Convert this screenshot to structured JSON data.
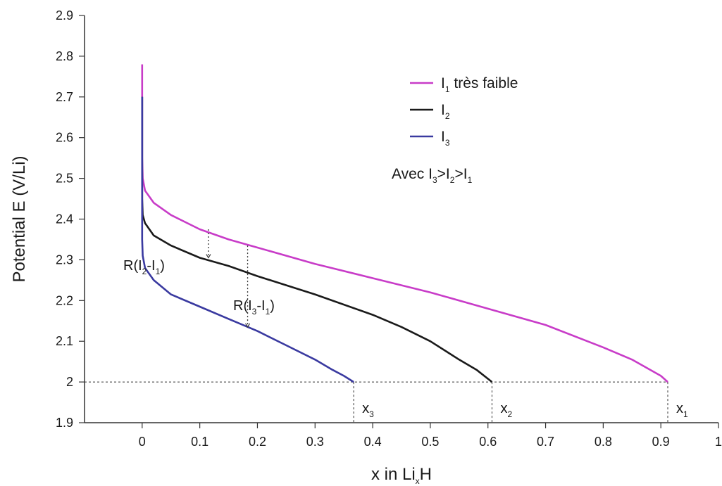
{
  "chart_data": {
    "type": "line",
    "ylabel": "Potential E (V/Li)",
    "xlabel": {
      "main": "x in Li",
      "sub": "x",
      "tail": "H"
    },
    "xlim": [
      -0.1,
      1.0
    ],
    "ylim": [
      1.9,
      2.9
    ],
    "x_ticks": [
      0,
      0.1,
      0.2,
      0.3,
      0.4,
      0.5,
      0.6,
      0.7,
      0.8,
      0.9,
      1
    ],
    "x_tick_labels": [
      "0",
      "0.1",
      "0.2",
      "0.3",
      "0.4",
      "0.5",
      "0.6",
      "0.7",
      "0.8",
      "0.9",
      "1"
    ],
    "y_ticks": [
      1.9,
      2.0,
      2.1,
      2.2,
      2.3,
      2.4,
      2.5,
      2.6,
      2.7,
      2.8,
      2.9
    ],
    "y_tick_labels": [
      "1.9",
      "2",
      "2.1",
      "2.2",
      "2.3",
      "2.4",
      "2.5",
      "2.6",
      "2.7",
      "2.8",
      "2.9"
    ],
    "grid": false,
    "legend_position": "top-right",
    "series": [
      {
        "legend": {
          "main": "I",
          "sub": "1",
          "tail": " très faible"
        },
        "color": "#c83cc8",
        "x": [
          0,
          0,
          0.001,
          0.005,
          0.02,
          0.05,
          0.1,
          0.15,
          0.2,
          0.3,
          0.4,
          0.5,
          0.6,
          0.7,
          0.8,
          0.85,
          0.9,
          0.912
        ],
        "y": [
          2.78,
          2.55,
          2.5,
          2.47,
          2.44,
          2.41,
          2.375,
          2.35,
          2.33,
          2.29,
          2.255,
          2.22,
          2.18,
          2.14,
          2.085,
          2.055,
          2.015,
          2.0
        ]
      },
      {
        "legend": {
          "main": "I",
          "sub": "2",
          "tail": ""
        },
        "color": "#1a1a1a",
        "x": [
          0,
          0,
          0.001,
          0.005,
          0.02,
          0.05,
          0.1,
          0.15,
          0.2,
          0.3,
          0.4,
          0.45,
          0.5,
          0.55,
          0.58,
          0.607
        ],
        "y": [
          2.7,
          2.45,
          2.41,
          2.39,
          2.36,
          2.335,
          2.305,
          2.285,
          2.26,
          2.215,
          2.165,
          2.135,
          2.1,
          2.055,
          2.03,
          2.0
        ]
      },
      {
        "legend": {
          "main": "I",
          "sub": "3",
          "tail": ""
        },
        "color": "#3a3aa0",
        "x": [
          0,
          0,
          0.001,
          0.005,
          0.02,
          0.05,
          0.1,
          0.15,
          0.2,
          0.25,
          0.3,
          0.33,
          0.35,
          0.367
        ],
        "y": [
          2.7,
          2.35,
          2.31,
          2.28,
          2.25,
          2.215,
          2.185,
          2.155,
          2.125,
          2.09,
          2.055,
          2.03,
          2.015,
          2.0
        ]
      }
    ],
    "condition_text": {
      "prefix": "Avec I",
      "s1": "3",
      "gt1": ">I",
      "s2": "2",
      "gt2": ">I",
      "s3": "1"
    },
    "annotations": [
      {
        "id": "r21",
        "main": "R(I",
        "sub1": "2",
        "mid": "-I",
        "sub2": "1",
        "tail": ")",
        "at_x": 0.115,
        "y_top": 2.375,
        "y_bottom": 2.305
      },
      {
        "id": "r31",
        "main": "R(I",
        "sub1": "3",
        "mid": "-I",
        "sub2": "1",
        "tail": ")",
        "at_x": 0.183,
        "y_top": 2.335,
        "y_bottom": 2.135
      }
    ],
    "capacity_markers": [
      {
        "main": "x",
        "sub": "3",
        "x": 0.367
      },
      {
        "main": "x",
        "sub": "2",
        "x": 0.607
      },
      {
        "main": "x",
        "sub": "1",
        "x": 0.912
      }
    ],
    "reference_level": 2.0
  }
}
